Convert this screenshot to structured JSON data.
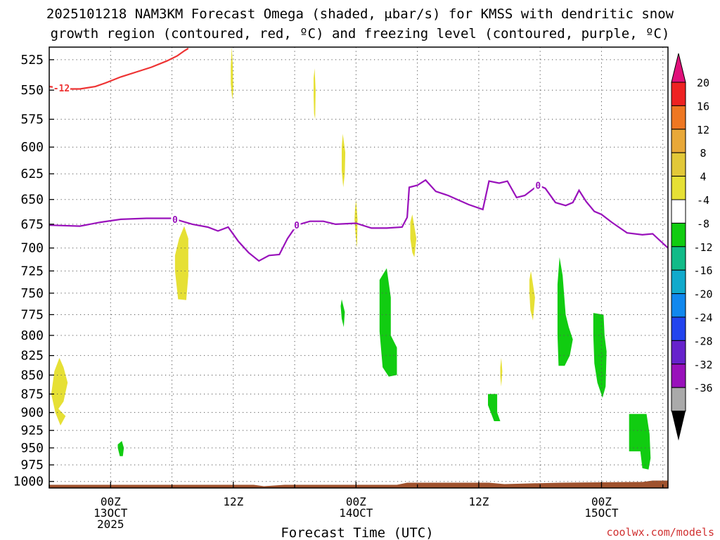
{
  "chart_data": {
    "type": "time-height",
    "title_line1": "2025101218 NAM3KM Forecast Omega (shaded, μbar/s) for KMSS with dendritic snow",
    "title_line2": "growth region (contoured, red, ºC) and freezing level (contoured, purple, ºC)",
    "xlabel": "Forecast Time (UTC)",
    "watermark": "coolwx.com/models",
    "x_range_hours": [
      -6,
      54.5
    ],
    "y_range_hpa": [
      515,
      1010
    ],
    "y_ticks": [
      525,
      550,
      575,
      600,
      625,
      650,
      675,
      700,
      725,
      750,
      775,
      800,
      825,
      850,
      875,
      900,
      925,
      950,
      975,
      1000
    ],
    "x_ticks": [
      {
        "hour": 0,
        "label1": "00Z",
        "label2": "13OCT",
        "label3": "2025"
      },
      {
        "hour": 12,
        "label1": "12Z",
        "label2": "",
        "label3": ""
      },
      {
        "hour": 24,
        "label1": "00Z",
        "label2": "14OCT",
        "label3": ""
      },
      {
        "hour": 36,
        "label1": "12Z",
        "label2": "",
        "label3": ""
      },
      {
        "hour": 48,
        "label1": "00Z",
        "label2": "15OCT",
        "label3": ""
      }
    ],
    "colorbar": [
      {
        "color": "#ee2222",
        "label": "20"
      },
      {
        "color": "#ee7722",
        "label": "16"
      },
      {
        "color": "#e8a838",
        "label": "12"
      },
      {
        "color": "#e2c838",
        "label": "8"
      },
      {
        "color": "#e6e035",
        "label": "4"
      },
      {
        "color": "#ffffff",
        "label": "-4"
      },
      {
        "color": "#11cc11",
        "label": "-8"
      },
      {
        "color": "#11bb88",
        "label": "-12"
      },
      {
        "color": "#11aacc",
        "label": "-16"
      },
      {
        "color": "#1188ee",
        "label": "-20"
      },
      {
        "color": "#2244ee",
        "label": "-24"
      },
      {
        "color": "#6622cc",
        "label": "-28"
      },
      {
        "color": "#9911bb",
        "label": "-32"
      },
      {
        "color": "#aaaaaa",
        "label": "-36"
      }
    ],
    "colorbar_top_arrow_color": "#e0107a",
    "colorbar_bottom_arrow_color": "#000000",
    "series": [
      {
        "name": "freezing level (0 ºC)",
        "color": "#9911bb",
        "contour_label": "0",
        "label_hours": [
          6.3,
          18.2,
          41.8
        ],
        "points": [
          [
            -6,
            676
          ],
          [
            -3,
            677
          ],
          [
            -1,
            673
          ],
          [
            1,
            670
          ],
          [
            3.5,
            669
          ],
          [
            6,
            669
          ],
          [
            8,
            675
          ],
          [
            9.5,
            678
          ],
          [
            10.5,
            682
          ],
          [
            11.5,
            678
          ],
          [
            12.5,
            693
          ],
          [
            13.5,
            705
          ],
          [
            14.5,
            714
          ],
          [
            15.5,
            708
          ],
          [
            16.5,
            707
          ],
          [
            17.3,
            690
          ],
          [
            18.2,
            676
          ],
          [
            19.5,
            672
          ],
          [
            20.8,
            672
          ],
          [
            22,
            675
          ],
          [
            24,
            674
          ],
          [
            25.5,
            679
          ],
          [
            27,
            679
          ],
          [
            28.5,
            678
          ],
          [
            29,
            668
          ],
          [
            29.2,
            638
          ],
          [
            30,
            636
          ],
          [
            30.8,
            631
          ],
          [
            31.8,
            642
          ],
          [
            33,
            646
          ],
          [
            35,
            655
          ],
          [
            36.4,
            660
          ],
          [
            37,
            632
          ],
          [
            38,
            634
          ],
          [
            38.8,
            632
          ],
          [
            39.7,
            648
          ],
          [
            40.5,
            646
          ],
          [
            41.8,
            636
          ],
          [
            42.5,
            639
          ],
          [
            43.5,
            653
          ],
          [
            44.5,
            656
          ],
          [
            45.2,
            653
          ],
          [
            45.8,
            641
          ],
          [
            46.5,
            652
          ],
          [
            47.3,
            662
          ],
          [
            48,
            665
          ],
          [
            49,
            673
          ],
          [
            50.5,
            684
          ],
          [
            52,
            686
          ],
          [
            53,
            685
          ],
          [
            54.5,
            700
          ]
        ]
      },
      {
        "name": "dendritic growth region (-12 ºC)",
        "color": "#ee3333",
        "contour_label": "-12",
        "label_hours": [
          -4.8
        ],
        "points": [
          [
            -6,
            547
          ],
          [
            -4,
            549
          ],
          [
            -3,
            549
          ],
          [
            -1.5,
            547
          ],
          [
            -0.5,
            544
          ],
          [
            1,
            539
          ],
          [
            2.5,
            535
          ],
          [
            4,
            531
          ],
          [
            5.5,
            526
          ],
          [
            6.5,
            522
          ],
          [
            7.2,
            518
          ],
          [
            7.6,
            516
          ]
        ]
      }
    ],
    "shaded_regions": [
      {
        "value": 4,
        "color": "#e6e035",
        "points": [
          [
            -5.1,
            895
          ],
          [
            -4.6,
            885
          ],
          [
            -4.2,
            860
          ],
          [
            -4.6,
            840
          ],
          [
            -5,
            828
          ],
          [
            -5.5,
            845
          ],
          [
            -5.8,
            875
          ],
          [
            -5.4,
            900
          ],
          [
            -4.9,
            918
          ],
          [
            -4.4,
            905
          ]
        ]
      },
      {
        "value": 4,
        "color": "#e6e035",
        "points": [
          [
            6.3,
            708
          ],
          [
            6.7,
            690
          ],
          [
            7.2,
            677
          ],
          [
            7.6,
            690
          ],
          [
            7.6,
            730
          ],
          [
            7.4,
            758
          ],
          [
            6.6,
            757
          ],
          [
            6.3,
            725
          ]
        ]
      },
      {
        "value": 4,
        "color": "#e6e035",
        "points": [
          [
            11.75,
            530
          ],
          [
            11.85,
            515
          ],
          [
            11.95,
            530
          ],
          [
            12,
            550
          ],
          [
            11.9,
            558
          ],
          [
            11.75,
            545
          ]
        ]
      },
      {
        "value": 4,
        "color": "#e6e035",
        "points": [
          [
            19.85,
            540
          ],
          [
            19.95,
            532
          ],
          [
            20.05,
            550
          ],
          [
            20,
            575
          ],
          [
            19.9,
            570
          ],
          [
            19.85,
            555
          ]
        ]
      },
      {
        "value": 4,
        "color": "#e6e035",
        "points": [
          [
            22.6,
            600
          ],
          [
            22.7,
            588
          ],
          [
            22.95,
            605
          ],
          [
            22.9,
            625
          ],
          [
            22.75,
            638
          ],
          [
            22.6,
            622
          ]
        ]
      },
      {
        "value": 4,
        "color": "#e6e035",
        "points": [
          [
            23.9,
            660
          ],
          [
            24,
            650
          ],
          [
            24.15,
            670
          ],
          [
            24.1,
            700
          ],
          [
            23.95,
            685
          ],
          [
            23.85,
            670
          ]
        ]
      },
      {
        "value": 4,
        "color": "#e6e035",
        "points": [
          [
            29.3,
            673
          ],
          [
            29.5,
            665
          ],
          [
            29.9,
            690
          ],
          [
            29.7,
            710
          ],
          [
            29.5,
            705
          ],
          [
            29.3,
            690
          ]
        ]
      },
      {
        "value": 4,
        "color": "#e6e035",
        "points": [
          [
            40.95,
            735
          ],
          [
            41.1,
            725
          ],
          [
            41.5,
            755
          ],
          [
            41.3,
            782
          ],
          [
            41.05,
            770
          ],
          [
            40.95,
            750
          ]
        ]
      },
      {
        "value": 4,
        "color": "#e6e035",
        "points": [
          [
            38.1,
            840
          ],
          [
            38.2,
            828
          ],
          [
            38.3,
            845
          ],
          [
            38.2,
            865
          ],
          [
            38.1,
            852
          ]
        ]
      },
      {
        "value": -8,
        "color": "#11cc11",
        "points": [
          [
            22.5,
            765
          ],
          [
            22.6,
            757
          ],
          [
            22.9,
            772
          ],
          [
            22.8,
            790
          ],
          [
            22.6,
            780
          ]
        ]
      },
      {
        "value": -8,
        "color": "#11cc11",
        "points": [
          [
            26.3,
            735
          ],
          [
            27,
            722
          ],
          [
            27.4,
            755
          ],
          [
            27.4,
            800
          ],
          [
            28,
            815
          ],
          [
            28,
            850
          ],
          [
            27.2,
            852
          ],
          [
            26.6,
            840
          ],
          [
            26.3,
            795
          ]
        ]
      },
      {
        "value": -8,
        "color": "#11cc11",
        "points": [
          [
            0.7,
            945
          ],
          [
            1.1,
            940
          ],
          [
            1.3,
            950
          ],
          [
            1.2,
            962
          ],
          [
            0.9,
            962
          ],
          [
            0.7,
            950
          ]
        ]
      },
      {
        "value": -8,
        "color": "#11cc11",
        "points": [
          [
            36.9,
            875
          ],
          [
            37.8,
            875
          ],
          [
            37.8,
            900
          ],
          [
            38.1,
            912
          ],
          [
            37.5,
            912
          ],
          [
            36.9,
            890
          ]
        ]
      },
      {
        "value": -8,
        "color": "#11cc11",
        "points": [
          [
            43.7,
            740
          ],
          [
            43.9,
            710
          ],
          [
            44.2,
            730
          ],
          [
            44.5,
            775
          ],
          [
            44.8,
            790
          ],
          [
            45.2,
            805
          ],
          [
            44.9,
            825
          ],
          [
            44.4,
            838
          ],
          [
            43.8,
            838
          ],
          [
            43.7,
            800
          ]
        ]
      },
      {
        "value": -8,
        "color": "#11cc11",
        "points": [
          [
            47.2,
            773
          ],
          [
            48.2,
            775
          ],
          [
            48.3,
            800
          ],
          [
            48.5,
            820
          ],
          [
            48.4,
            865
          ],
          [
            48.1,
            880
          ],
          [
            47.6,
            860
          ],
          [
            47.3,
            835
          ],
          [
            47.2,
            800
          ]
        ]
      },
      {
        "value": -8,
        "color": "#11cc11",
        "points": [
          [
            50.7,
            902
          ],
          [
            52.4,
            902
          ],
          [
            52.7,
            930
          ],
          [
            52.8,
            965
          ],
          [
            52.6,
            982
          ],
          [
            52,
            980
          ],
          [
            51.8,
            955
          ],
          [
            51.5,
            955
          ],
          [
            50.7,
            955
          ]
        ]
      }
    ]
  }
}
